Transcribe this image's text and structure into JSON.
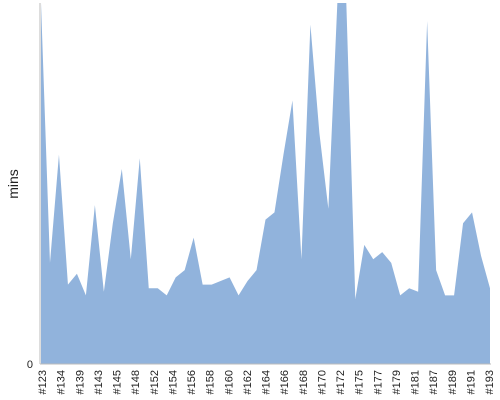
{
  "chart_data": {
    "type": "area",
    "ylabel": "mins",
    "y_tick_labels": [
      "0"
    ],
    "ylim": [
      0,
      100
    ],
    "fill_color": "#91b3dc",
    "axis_color": "#bbbbbb",
    "grid": false,
    "legend": "none",
    "x_tick_labels": [
      "#123",
      "#134",
      "#139",
      "#143",
      "#145",
      "#148",
      "#152",
      "#154",
      "#156",
      "#158",
      "#160",
      "#162",
      "#164",
      "#166",
      "#168",
      "#170",
      "#172",
      "#175",
      "#177",
      "#179",
      "#181",
      "#187",
      "#189",
      "#191",
      "#193"
    ],
    "series": [
      {
        "values": [
          100,
          28,
          58,
          22,
          25,
          19,
          44,
          20,
          39,
          54,
          29,
          57,
          21,
          21,
          19,
          24,
          26,
          35,
          22,
          22,
          23,
          24,
          19,
          23,
          26,
          40,
          42,
          58,
          73,
          29,
          94,
          64,
          43,
          100,
          100,
          18,
          33,
          29,
          31,
          28,
          19,
          21,
          20,
          95,
          26,
          19,
          19,
          39,
          42,
          30,
          21
        ]
      }
    ]
  }
}
